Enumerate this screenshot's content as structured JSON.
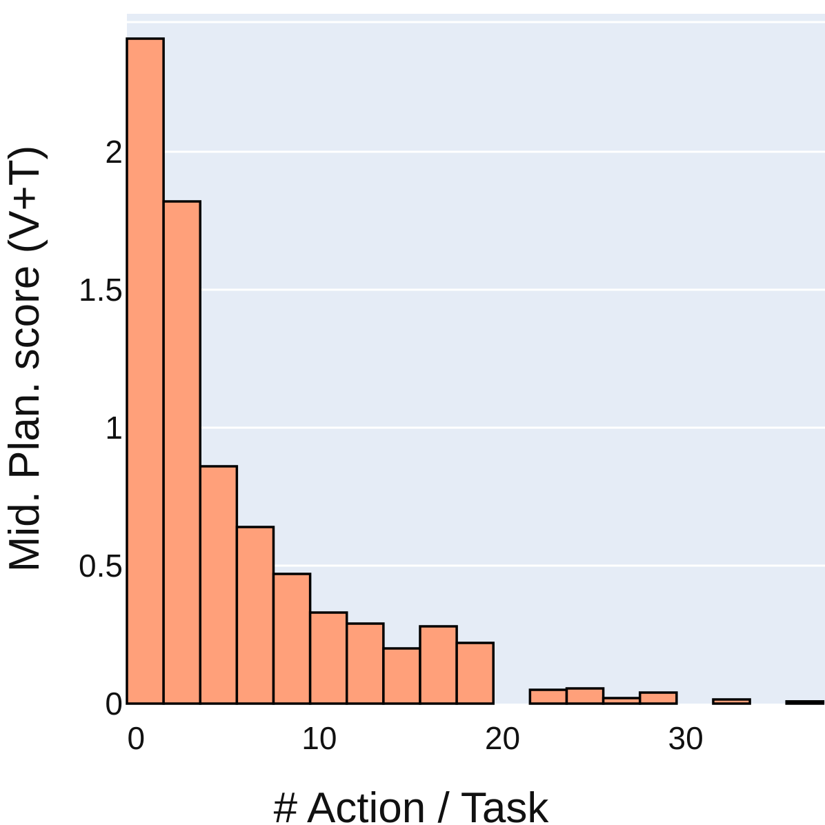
{
  "chart_data": {
    "type": "bar",
    "xlabel": "# Action / Task",
    "ylabel": "Mid. Plan. score (V+T)",
    "xlim": [
      -0.5,
      37.6
    ],
    "ylim": [
      0,
      2.5
    ],
    "xticks": [
      0,
      10,
      20,
      30
    ],
    "xtick_labels": [
      "0",
      "10",
      "20",
      "30"
    ],
    "yticks": [
      0,
      0.5,
      1,
      1.5,
      2
    ],
    "ytick_labels": [
      "0",
      "0.5",
      "1",
      "1.5",
      "2"
    ],
    "grid": true,
    "legend": "none",
    "bin_width": 2,
    "bars": [
      {
        "x0": -0.5,
        "x1": 1.5,
        "value": 2.41
      },
      {
        "x0": 1.5,
        "x1": 3.5,
        "value": 1.82
      },
      {
        "x0": 3.5,
        "x1": 5.5,
        "value": 0.86
      },
      {
        "x0": 5.5,
        "x1": 7.5,
        "value": 0.64
      },
      {
        "x0": 7.5,
        "x1": 9.5,
        "value": 0.47
      },
      {
        "x0": 9.5,
        "x1": 11.5,
        "value": 0.33
      },
      {
        "x0": 11.5,
        "x1": 13.5,
        "value": 0.29
      },
      {
        "x0": 13.5,
        "x1": 15.5,
        "value": 0.2
      },
      {
        "x0": 15.5,
        "x1": 17.5,
        "value": 0.28
      },
      {
        "x0": 17.5,
        "x1": 19.5,
        "value": 0.22
      },
      {
        "x0": 21.5,
        "x1": 23.5,
        "value": 0.05
      },
      {
        "x0": 23.5,
        "x1": 25.5,
        "value": 0.055
      },
      {
        "x0": 25.5,
        "x1": 27.5,
        "value": 0.02
      },
      {
        "x0": 27.5,
        "x1": 29.5,
        "value": 0.04
      },
      {
        "x0": 31.5,
        "x1": 33.5,
        "value": 0.015
      },
      {
        "x0": 35.5,
        "x1": 37.5,
        "value": 0.008
      }
    ],
    "colors": {
      "bar_fill": "#ffa07a",
      "bar_stroke": "#000000",
      "plot_background": "#e5ecf6",
      "grid": "#ffffff"
    }
  }
}
